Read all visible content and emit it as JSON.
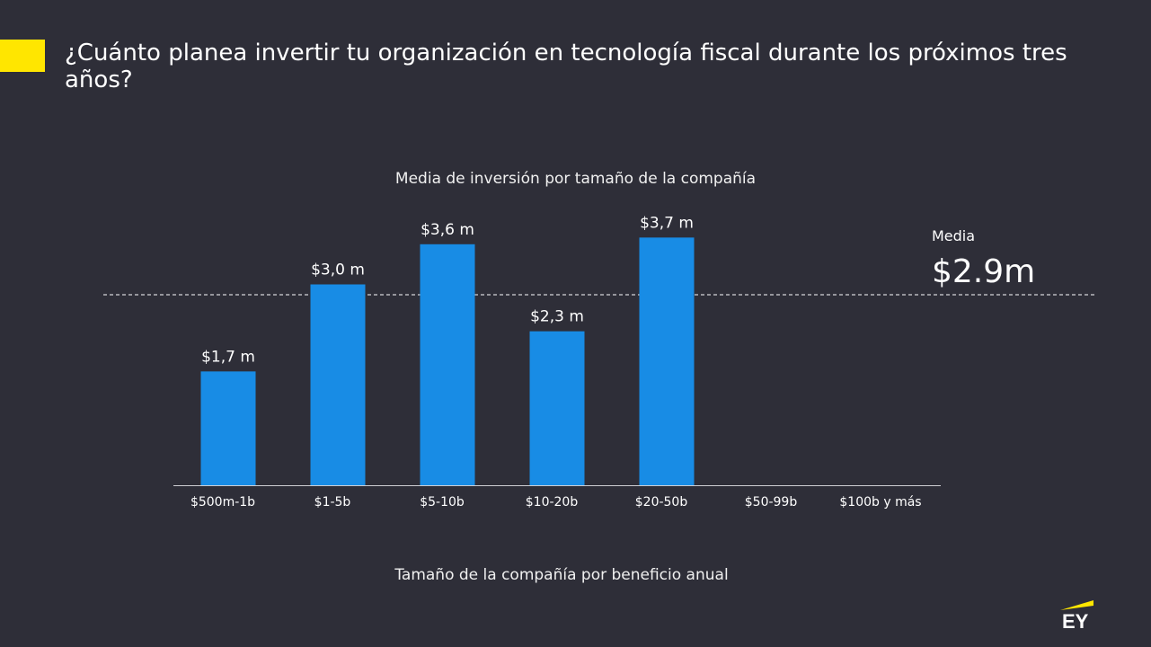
{
  "title": "¿Cuánto planea invertir tu organización en tecnología fiscal durante los próximos tres años?",
  "colors": {
    "accent": "#ffe600",
    "bar": "#188ce5",
    "background": "#2e2e38"
  },
  "mean": {
    "label": "Media",
    "value_label": "$2.9m",
    "value": 2.9
  },
  "logo": "EY",
  "chart_data": {
    "type": "bar",
    "title": "Media de inversión por tamaño de la compañía",
    "xlabel": "Tamaño de la compañía por beneficio anual",
    "ylabel": "",
    "categories": [
      "$500m-1b",
      "$1-5b",
      "$5-10b",
      "$10-20b",
      "$20-50b",
      "$50-99b",
      "$100b y más"
    ],
    "values": [
      1.7,
      3.0,
      3.6,
      2.3,
      3.7,
      null,
      null
    ],
    "data_labels": [
      "$1,7 m",
      "$3,0 m",
      "$3,6 m",
      "$2,3 m",
      "$3,7 m",
      "",
      ""
    ],
    "ylim": [
      0,
      3.7
    ],
    "grid": false,
    "reference_line": {
      "label": "Media",
      "value": 2.9
    }
  }
}
